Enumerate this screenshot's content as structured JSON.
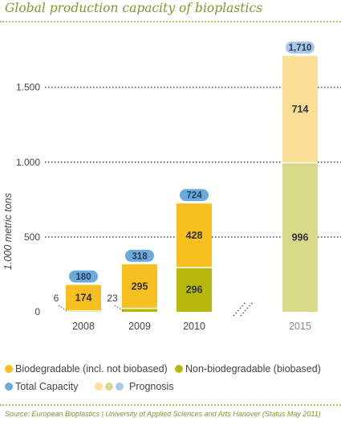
{
  "title": "Global production capacity of bioplastics",
  "source": "Source: European Bioplastics | University of Applied Sciences and Arts Hanover (Status May 2011)",
  "colors": {
    "biodegradable": "#f7bf1f",
    "non_biodegradable": "#b7b80c",
    "total_badge": "#6aaadd",
    "biodegradable_prognosis": "#fbdf96",
    "non_biodegradable_prognosis": "#d9d98a",
    "total_badge_prognosis": "#a9c7e6",
    "title": "#7a9a2e"
  },
  "legend": {
    "biodegradable": "Biodegradable (incl. not biobased)",
    "non_biodegradable": "Non-biodegradable (biobased)",
    "total": "Total Capacity",
    "prognosis": "Prognosis"
  },
  "chart_data": {
    "type": "bar",
    "stacked": true,
    "categories": [
      "2008",
      "2009",
      "2010",
      "2015"
    ],
    "prognosis_categories": [
      "2015"
    ],
    "ylabel": "1.000 metric tons",
    "ylim": [
      0,
      1900
    ],
    "yticks": [
      0,
      500,
      1000,
      1500
    ],
    "ytick_labels": [
      "0",
      "500",
      "1.000",
      "1.500"
    ],
    "grid": true,
    "series": [
      {
        "name": "Non-biodegradable (biobased)",
        "values": [
          6,
          23,
          296,
          996
        ],
        "labels": [
          "6",
          "23",
          "296",
          "996"
        ]
      },
      {
        "name": "Biodegradable (incl. not biobased)",
        "values": [
          174,
          295,
          428,
          714
        ],
        "labels": [
          "174",
          "295",
          "428",
          "714"
        ]
      }
    ],
    "totals": [
      180,
      318,
      724,
      1710
    ],
    "total_labels": [
      "180",
      "318",
      "724",
      "1,710"
    ]
  }
}
